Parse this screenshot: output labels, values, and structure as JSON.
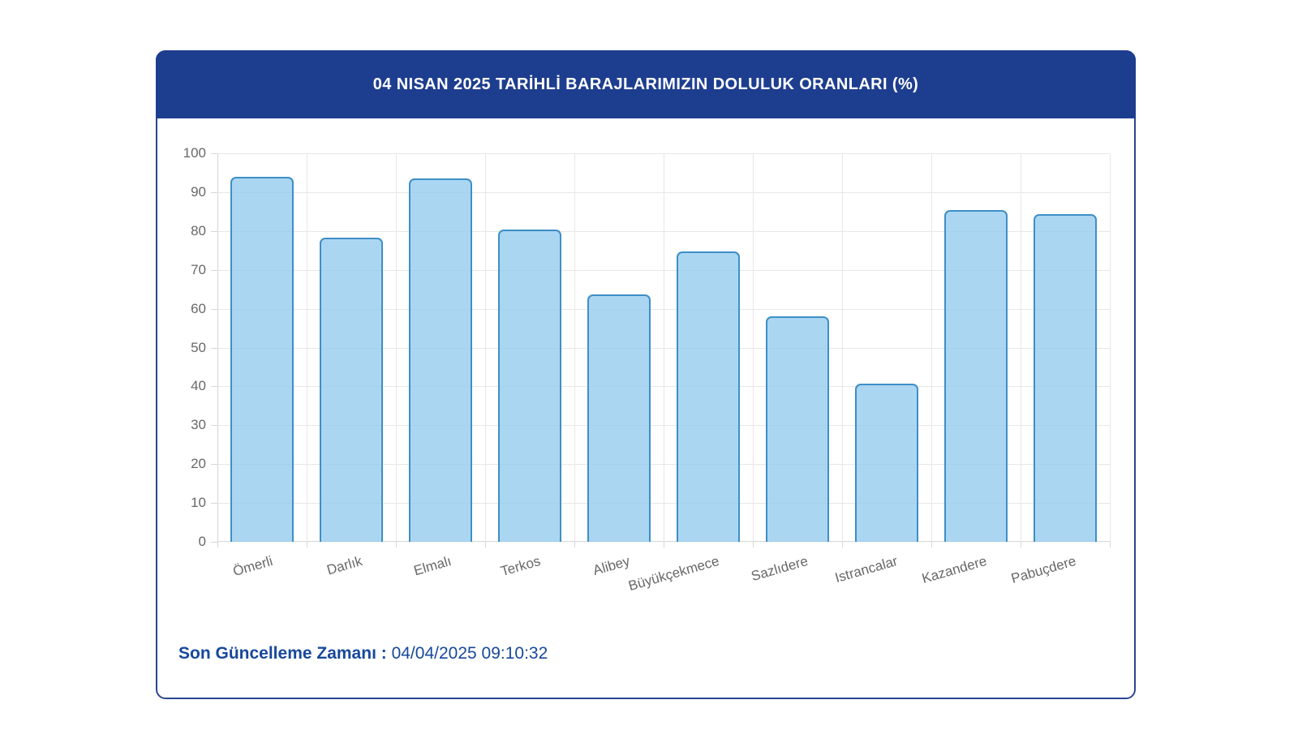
{
  "header": {
    "title": "04 NISAN 2025 TARİHLİ BARAJLARIMIZIN DOLULUK ORANLARI (%)"
  },
  "footer": {
    "label": "Son Güncelleme Zamanı",
    "separator": " : ",
    "value": "04/04/2025 09:10:32"
  },
  "chart_data": {
    "type": "bar",
    "title": "04 NISAN 2025 TARİHLİ BARAJLARIMIZIN DOLULUK ORANLARI (%)",
    "categories": [
      "Ömerli",
      "Darlık",
      "Elmalı",
      "Terkos",
      "Alibey",
      "Büyükçekmece",
      "Sazlıdere",
      "Istrancalar",
      "Kazandere",
      "Pabuçdere"
    ],
    "values": [
      94.0,
      78.2,
      93.5,
      80.4,
      63.7,
      74.8,
      58.0,
      40.8,
      85.4,
      84.3
    ],
    "xlabel": "",
    "ylabel": "",
    "ylim": [
      0,
      100
    ],
    "ytick_step": 10,
    "yticks": [
      0,
      10,
      20,
      30,
      40,
      50,
      60,
      70,
      80,
      90,
      100
    ],
    "grid": true,
    "legend": "none",
    "colors": {
      "bar_fill": "#93cbee",
      "bar_border": "#3e8fc6",
      "header_bg": "#1d3d8f",
      "header_text": "#ffffff",
      "card_border": "#2a4693",
      "grid_color": "#e7e7e7",
      "axis_label_color": "#686868",
      "footer_text": "#17489b"
    }
  }
}
